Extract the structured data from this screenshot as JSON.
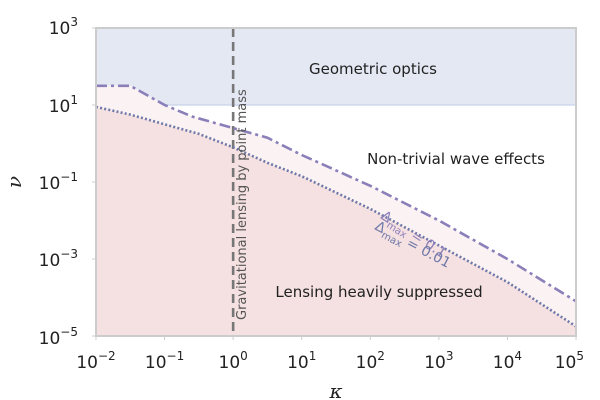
{
  "chart_data": {
    "type": "area",
    "title": "",
    "xlabel": "κ",
    "ylabel": "ν",
    "xscale": "log",
    "yscale": "log",
    "xlim_exp": [
      -2,
      5
    ],
    "ylim_exp": [
      -5,
      3
    ],
    "x_ticks": [
      {
        "base": "10",
        "exp": "−2",
        "value_exp": -2
      },
      {
        "base": "10",
        "exp": "−1",
        "value_exp": -1
      },
      {
        "base": "10",
        "exp": "0",
        "value_exp": 0
      },
      {
        "base": "10",
        "exp": "1",
        "value_exp": 1
      },
      {
        "base": "10",
        "exp": "2",
        "value_exp": 2
      },
      {
        "base": "10",
        "exp": "3",
        "value_exp": 3
      },
      {
        "base": "10",
        "exp": "4",
        "value_exp": 4
      },
      {
        "base": "10",
        "exp": "5",
        "value_exp": 5
      }
    ],
    "y_ticks": [
      {
        "base": "10",
        "exp": "−5",
        "value_exp": -5
      },
      {
        "base": "10",
        "exp": "−3",
        "value_exp": -3
      },
      {
        "base": "10",
        "exp": "−1",
        "value_exp": -1
      },
      {
        "base": "10",
        "exp": "1",
        "value_exp": 1
      },
      {
        "base": "10",
        "exp": "3",
        "value_exp": 3
      }
    ],
    "geometric_optics_threshold_exp": 1,
    "point_mass_kappa_exp": 0,
    "regions": {
      "geometric": "Geometric optics",
      "wave": "Non-trivial wave effects",
      "suppressed": "Lensing heavily suppressed",
      "point_mass": "Gravitational lensing by point mass"
    },
    "series": [
      {
        "name": "dmax_01",
        "label_main": "Δ",
        "label_sub": "max",
        "label_rest": " = 0.1",
        "points_log": [
          [
            -2,
            1.5
          ],
          [
            -1.5,
            1.5
          ],
          [
            -1,
            1.0
          ],
          [
            -0.6,
            0.7
          ],
          [
            0,
            0.4
          ],
          [
            0.5,
            0.15
          ],
          [
            1,
            -0.3
          ],
          [
            2,
            -1.1
          ],
          [
            3,
            -2.0
          ],
          [
            4,
            -3.0
          ],
          [
            5,
            -4.1
          ]
        ]
      },
      {
        "name": "dmax_001",
        "label_main": "Δ",
        "label_sub": "max",
        "label_rest": " = 0.01",
        "points_log": [
          [
            -2,
            0.95
          ],
          [
            -1.5,
            0.75
          ],
          [
            -1,
            0.5
          ],
          [
            -0.5,
            0.25
          ],
          [
            0,
            -0.1
          ],
          [
            0.5,
            -0.5
          ],
          [
            1,
            -0.85
          ],
          [
            2,
            -1.7
          ],
          [
            3,
            -2.65
          ],
          [
            4,
            -3.6
          ],
          [
            5,
            -4.75
          ]
        ]
      }
    ]
  }
}
